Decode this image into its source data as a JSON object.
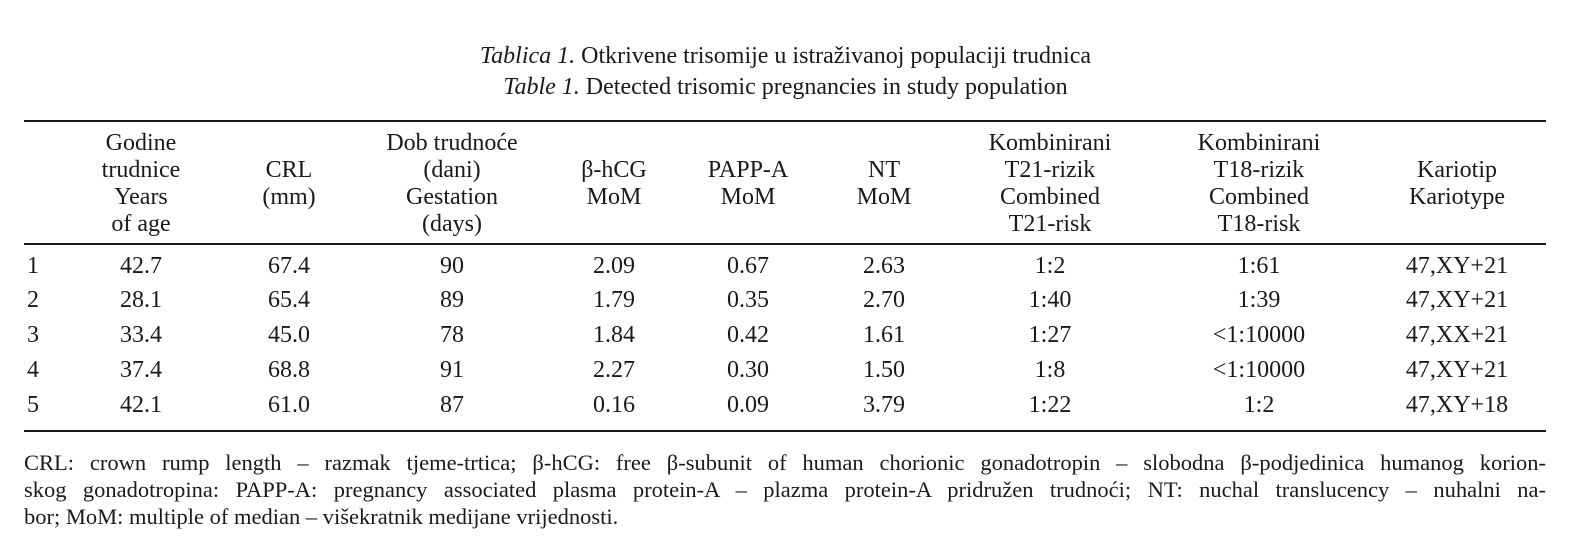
{
  "caption": {
    "line1_lead": "Tablica 1.",
    "line1_text": " Otkrivene trisomije u istraživanoj populaciji trudnica",
    "line2_lead": "Table 1.",
    "line2_text": " Detected trisomic pregnancies in study population"
  },
  "table": {
    "headers": [
      {
        "lines": [
          "Godine",
          "trudnice",
          "Years",
          "of age"
        ]
      },
      {
        "lines": [
          "CRL",
          "(mm)"
        ]
      },
      {
        "lines": [
          "Dob trudnoće",
          "(dani)",
          "Gestation",
          "(days)"
        ]
      },
      {
        "lines": [
          "β-hCG",
          "MoM"
        ]
      },
      {
        "lines": [
          "PAPP-A",
          "MoM"
        ]
      },
      {
        "lines": [
          "NT",
          "MoM"
        ]
      },
      {
        "lines": [
          "Kombinirani",
          "T21-rizik",
          "Combined",
          "T21-risk"
        ]
      },
      {
        "lines": [
          "Kombinirani",
          "T18-rizik",
          "Combined",
          "T18-risk"
        ]
      },
      {
        "lines": [
          "Kariotip",
          "Kariotype"
        ]
      }
    ],
    "rows": [
      [
        "1",
        "42.7",
        "67.4",
        "90",
        "2.09",
        "0.67",
        "2.63",
        "1:2",
        "1:61",
        "47,XY+21"
      ],
      [
        "2",
        "28.1",
        "65.4",
        "89",
        "1.79",
        "0.35",
        "2.70",
        "1:40",
        "1:39",
        "47,XY+21"
      ],
      [
        "3",
        "33.4",
        "45.0",
        "78",
        "1.84",
        "0.42",
        "1.61",
        "1:27",
        "<1:10000",
        "47,XX+21"
      ],
      [
        "4",
        "37.4",
        "68.8",
        "91",
        "2.27",
        "0.30",
        "1.50",
        "1:8",
        "<1:10000",
        "47,XY+21"
      ],
      [
        "5",
        "42.1",
        "61.0",
        "87",
        "0.16",
        "0.09",
        "3.79",
        "1:22",
        "1:2",
        "47,XY+18"
      ]
    ]
  },
  "footnote": {
    "lines": [
      "CRL: crown rump length – razmak tjeme-trtica; β-hCG: free β-subunit of human chorionic gonadotropin – slobodna β-podjedinica humanog korion-",
      "skog gonadotropina: PAPP-A: pregnancy associated plasma protein-A – plazma protein-A pridružen trudnoći; NT: nuchal translucency – nuhalni na-",
      "bor; MoM: multiple of median – višekratnik medijane vrijednosti."
    ]
  }
}
